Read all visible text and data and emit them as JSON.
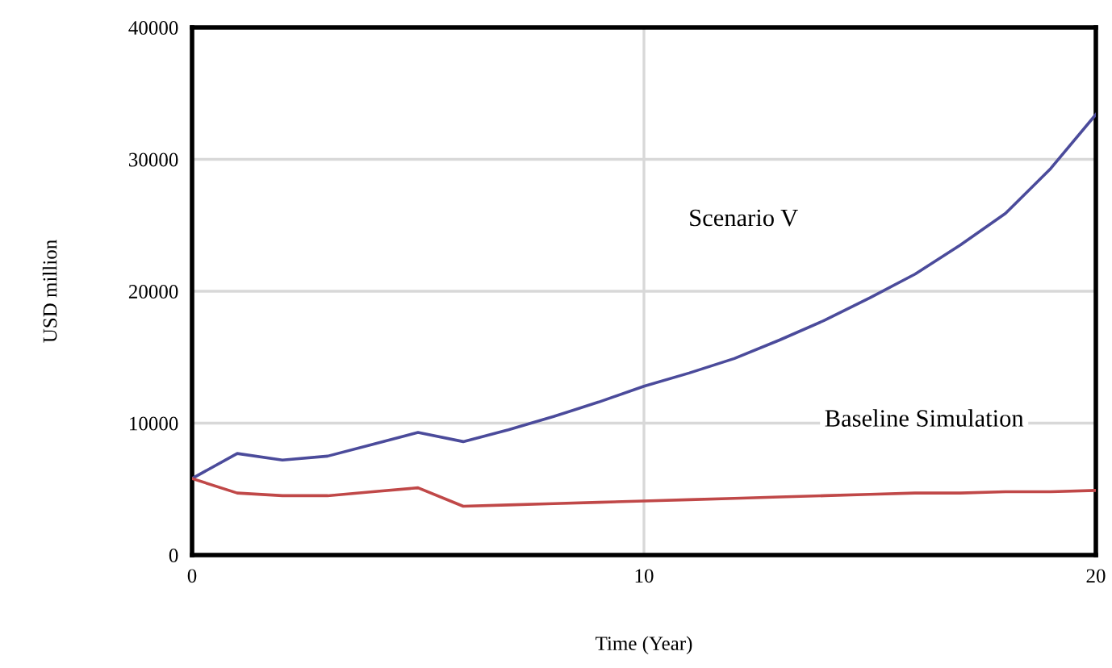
{
  "chart_data": {
    "type": "line",
    "xlabel": "Time (Year)",
    "ylabel": "USD million",
    "x": [
      0,
      1,
      2,
      3,
      4,
      5,
      6,
      7,
      8,
      9,
      10,
      11,
      12,
      13,
      14,
      15,
      16,
      17,
      18,
      19,
      20
    ],
    "series": [
      {
        "color": "#4b4b9b",
        "values": [
          5800,
          7700,
          7200,
          7500,
          8400,
          9300,
          8600,
          9500,
          10500,
          11600,
          12800,
          13800,
          14900,
          16300,
          17800,
          19500,
          21300,
          23500,
          25900,
          29300,
          33400
        ]
      },
      {
        "color": "#c04848",
        "values": [
          5800,
          4700,
          4500,
          4500,
          4800,
          5100,
          3700,
          3800,
          3900,
          4000,
          4100,
          4200,
          4300,
          4400,
          4500,
          4600,
          4700,
          4700,
          4800,
          4800,
          4900
        ]
      }
    ],
    "annotations": [
      "Scenario V",
      "Baseline Simulation"
    ],
    "xlim": [
      0,
      20
    ],
    "ylim": [
      0,
      40000
    ],
    "xticks": [
      0,
      10,
      20
    ],
    "yticks": [
      0,
      10000,
      20000,
      30000,
      40000
    ],
    "grid": true,
    "line_style": "solid",
    "marker": "none"
  }
}
